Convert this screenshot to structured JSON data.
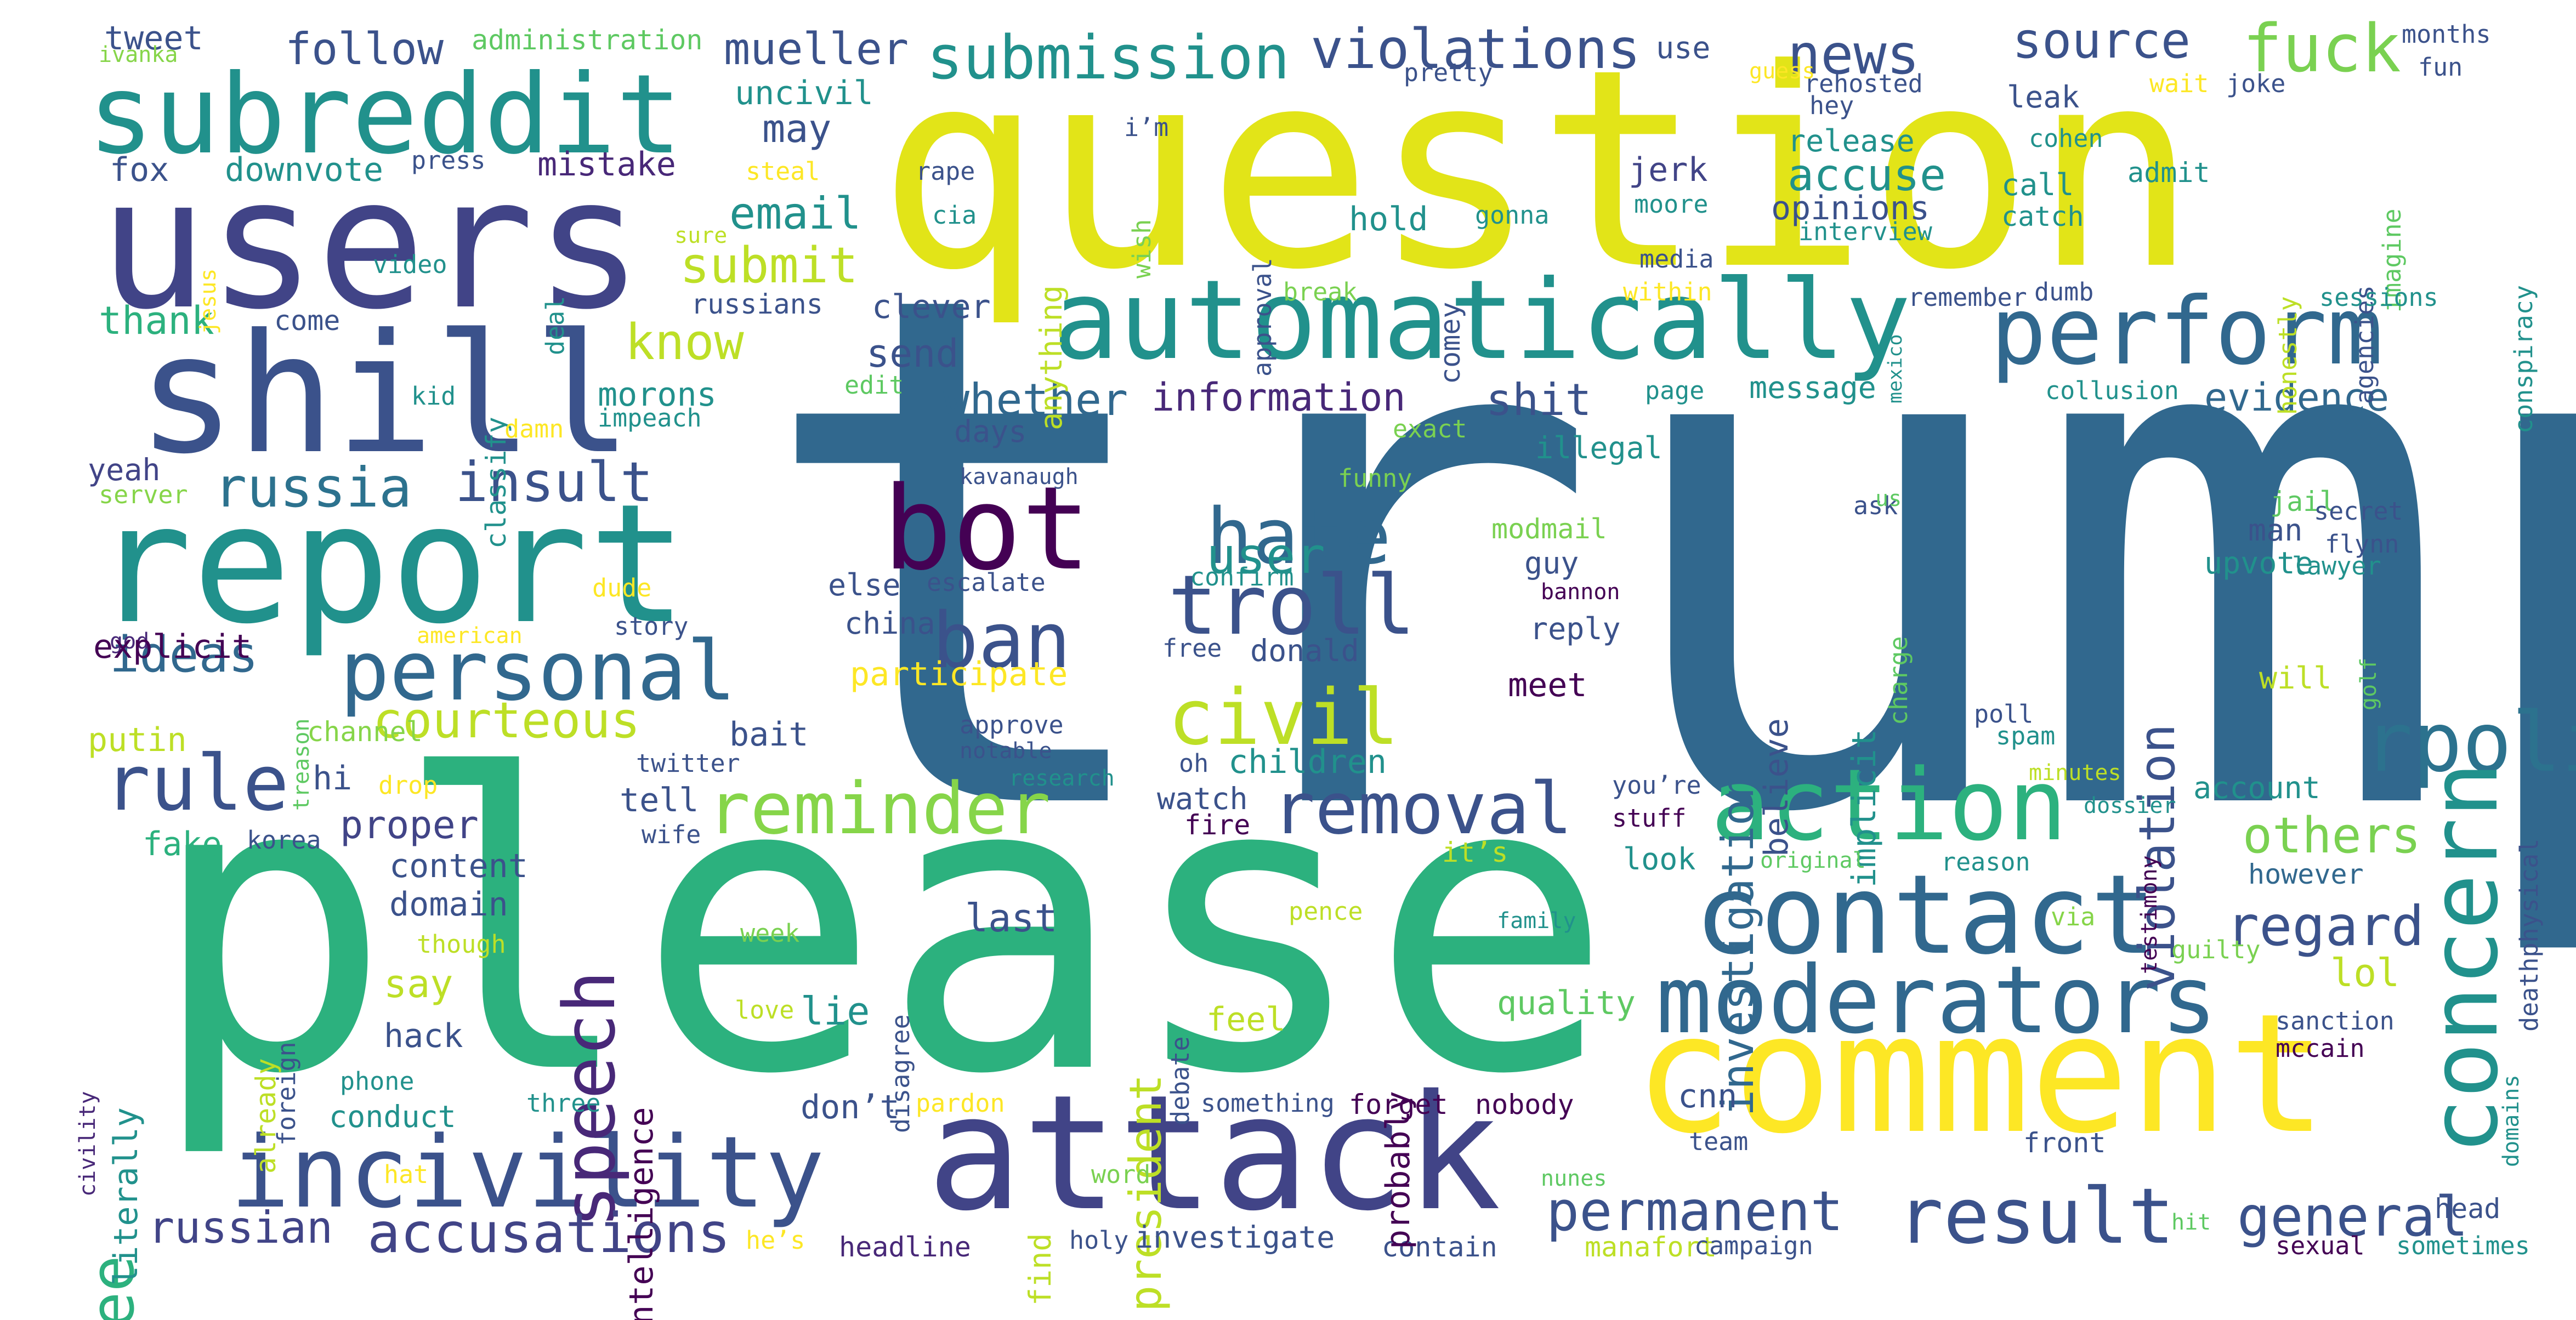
{
  "palette": {
    "yellow": "#e2e418",
    "lime": "#86d549",
    "green": "#5ec962",
    "emerald": "#2cb17e",
    "teal": "#21918c",
    "steel": "#31688e",
    "indigo": "#414487",
    "violet": "#482878",
    "purple": "#440154"
  },
  "words": [
    "trump",
    "please",
    "question",
    "users",
    "report",
    "attack",
    "comment",
    "shill",
    "subreddit",
    "automatically",
    "perform",
    "bot",
    "contact",
    "moderators",
    "incivility",
    "rpolitics",
    "concern",
    "personal",
    "action",
    "ban",
    "hate",
    "troll",
    "reminder",
    "civil",
    "removal",
    "result",
    "permanent",
    "speech",
    "accusations",
    "rule",
    "russia",
    "submission",
    "violations",
    "fuck",
    "news",
    "source",
    "insult",
    "general",
    "regard",
    "courteous",
    "mueller",
    "follow",
    "violation",
    "investigation",
    "information",
    "whether",
    "evidence",
    "ideas",
    "russian",
    "president",
    "see",
    "know",
    "submit",
    "email",
    "accuse",
    "opinions",
    "others",
    "user",
    "shit",
    "tweet",
    "thank",
    "may",
    "uncivil",
    "downvote",
    "fox",
    "mistake",
    "press",
    "administration",
    "ivanka",
    "send",
    "clever",
    "russians",
    "come",
    "classify",
    "morons",
    "impeach",
    "kid",
    "damn",
    "edit",
    "yeah",
    "server",
    "god",
    "dude",
    "story",
    "american",
    "treason",
    "channel",
    "putin",
    "bait",
    "hi",
    "twitter",
    "drop",
    "explicit",
    "proper",
    "fake",
    "korea",
    "wife",
    "tell",
    "content",
    "domain",
    "though",
    "say",
    "hack",
    "phone",
    "conduct",
    "already",
    "foreign",
    "literally",
    "civility",
    "lie",
    "last",
    "don’t",
    "three",
    "hat",
    "he’s",
    "headline",
    "holy",
    "investigate",
    "contain",
    "manafort",
    "campaign",
    "sexual",
    "sometimes",
    "head",
    "front",
    "hit",
    "mccain",
    "sanction",
    "domains",
    "deathphysical",
    "guilty",
    "pardon",
    "something",
    "forget",
    "nobody",
    "cnn",
    "team",
    "nunes",
    "word",
    "find",
    "love",
    "feel",
    "probably",
    "quality",
    "pence",
    "family",
    "via",
    "week",
    "debate",
    "disagree",
    "intelligence",
    "participate",
    "china",
    "else",
    "escalate",
    "approve",
    "notable",
    "research",
    "watch",
    "fire",
    "children",
    "oh",
    "it’s",
    "meet",
    "donald",
    "free",
    "confirm",
    "bannon",
    "believe",
    "implicit",
    "charge",
    "reply",
    "modmail",
    "guy",
    "illegal",
    "exact",
    "funny",
    "ask",
    "jail",
    "man",
    "upvote",
    "lawyer",
    "flynn",
    "secret",
    "golf",
    "will",
    "account",
    "however",
    "lol",
    "poll",
    "spam",
    "testimony",
    "minutes",
    "dossier",
    "original",
    "reason",
    "look",
    "stuff",
    "you’re",
    "message",
    "collusion",
    "page",
    "jerk",
    "hold",
    "comey",
    "gonna",
    "moore",
    "media",
    "within",
    "break",
    "approval",
    "wish",
    "i’m",
    "anything",
    "steal",
    "rape",
    "cia",
    "jesus",
    "video",
    "deal",
    "sure",
    "days",
    "kavanaugh",
    "us",
    "leak",
    "call",
    "catch",
    "release",
    "cohen",
    "rehosted",
    "hey",
    "guess",
    "use",
    "pretty",
    "wait",
    "joke",
    "months",
    "fun",
    "admit",
    "interview",
    "conspiracy",
    "honestly",
    "agencies",
    "imagine",
    "sessions",
    "remember",
    "dumb",
    "mexico"
  ]
}
